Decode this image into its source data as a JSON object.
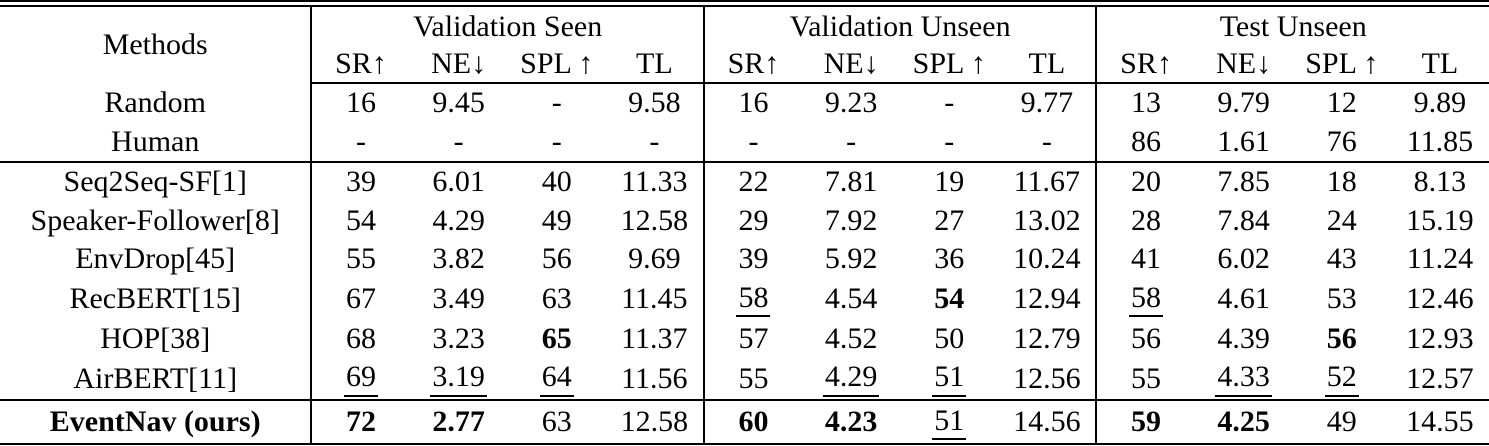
{
  "table": {
    "methods_header": "Methods",
    "groups": [
      {
        "label": "Validation Seen",
        "metrics": [
          "SR↑",
          "NE↓",
          "SPL ↑",
          "TL"
        ]
      },
      {
        "label": "Validation Unseen",
        "metrics": [
          "SR↑",
          "NE↓",
          "SPL ↑",
          "TL"
        ]
      },
      {
        "label": "Test Unseen",
        "metrics": [
          "SR↑",
          "NE↓",
          "SPL ↑",
          "TL"
        ]
      }
    ],
    "format_legend": {
      "p": "plain",
      "b": "bold",
      "u": "underline"
    },
    "rows": [
      {
        "method": "Random",
        "method_style": "p",
        "section_end": false,
        "cells": [
          {
            "t": "16",
            "s": "p"
          },
          {
            "t": "9.45",
            "s": "p"
          },
          {
            "t": "-",
            "s": "p"
          },
          {
            "t": "9.58",
            "s": "p"
          },
          {
            "t": "16",
            "s": "p"
          },
          {
            "t": "9.23",
            "s": "p"
          },
          {
            "t": "-",
            "s": "p"
          },
          {
            "t": "9.77",
            "s": "p"
          },
          {
            "t": "13",
            "s": "p"
          },
          {
            "t": "9.79",
            "s": "p"
          },
          {
            "t": "12",
            "s": "p"
          },
          {
            "t": "9.89",
            "s": "p"
          }
        ]
      },
      {
        "method": "Human",
        "method_style": "p",
        "section_end": true,
        "cells": [
          {
            "t": "-",
            "s": "p"
          },
          {
            "t": "-",
            "s": "p"
          },
          {
            "t": "-",
            "s": "p"
          },
          {
            "t": "-",
            "s": "p"
          },
          {
            "t": "-",
            "s": "p"
          },
          {
            "t": "-",
            "s": "p"
          },
          {
            "t": "-",
            "s": "p"
          },
          {
            "t": "-",
            "s": "p"
          },
          {
            "t": "86",
            "s": "p"
          },
          {
            "t": "1.61",
            "s": "p"
          },
          {
            "t": "76",
            "s": "p"
          },
          {
            "t": "11.85",
            "s": "p"
          }
        ]
      },
      {
        "method": "Seq2Seq-SF[1]",
        "method_style": "p",
        "section_end": false,
        "cells": [
          {
            "t": "39",
            "s": "p"
          },
          {
            "t": "6.01",
            "s": "p"
          },
          {
            "t": "40",
            "s": "p"
          },
          {
            "t": "11.33",
            "s": "p"
          },
          {
            "t": "22",
            "s": "p"
          },
          {
            "t": "7.81",
            "s": "p"
          },
          {
            "t": "19",
            "s": "p"
          },
          {
            "t": "11.67",
            "s": "p"
          },
          {
            "t": "20",
            "s": "p"
          },
          {
            "t": "7.85",
            "s": "p"
          },
          {
            "t": "18",
            "s": "p"
          },
          {
            "t": "8.13",
            "s": "p"
          }
        ]
      },
      {
        "method": "Speaker-Follower[8]",
        "method_style": "p",
        "section_end": false,
        "cells": [
          {
            "t": "54",
            "s": "p"
          },
          {
            "t": "4.29",
            "s": "p"
          },
          {
            "t": "49",
            "s": "p"
          },
          {
            "t": "12.58",
            "s": "p"
          },
          {
            "t": "29",
            "s": "p"
          },
          {
            "t": "7.92",
            "s": "p"
          },
          {
            "t": "27",
            "s": "p"
          },
          {
            "t": "13.02",
            "s": "p"
          },
          {
            "t": "28",
            "s": "p"
          },
          {
            "t": "7.84",
            "s": "p"
          },
          {
            "t": "24",
            "s": "p"
          },
          {
            "t": "15.19",
            "s": "p"
          }
        ]
      },
      {
        "method": "EnvDrop[45]",
        "method_style": "p",
        "section_end": false,
        "cells": [
          {
            "t": "55",
            "s": "p"
          },
          {
            "t": "3.82",
            "s": "p"
          },
          {
            "t": "56",
            "s": "p"
          },
          {
            "t": "9.69",
            "s": "p"
          },
          {
            "t": "39",
            "s": "p"
          },
          {
            "t": "5.92",
            "s": "p"
          },
          {
            "t": "36",
            "s": "p"
          },
          {
            "t": "10.24",
            "s": "p"
          },
          {
            "t": "41",
            "s": "p"
          },
          {
            "t": "6.02",
            "s": "p"
          },
          {
            "t": "43",
            "s": "p"
          },
          {
            "t": "11.24",
            "s": "p"
          }
        ]
      },
      {
        "method": "RecBERT[15]",
        "method_style": "p",
        "section_end": false,
        "cells": [
          {
            "t": "67",
            "s": "p"
          },
          {
            "t": "3.49",
            "s": "p"
          },
          {
            "t": "63",
            "s": "p"
          },
          {
            "t": "11.45",
            "s": "p"
          },
          {
            "t": "58",
            "s": "u"
          },
          {
            "t": "4.54",
            "s": "p"
          },
          {
            "t": "54",
            "s": "b"
          },
          {
            "t": "12.94",
            "s": "p"
          },
          {
            "t": "58",
            "s": "u"
          },
          {
            "t": "4.61",
            "s": "p"
          },
          {
            "t": "53",
            "s": "p"
          },
          {
            "t": "12.46",
            "s": "p"
          }
        ]
      },
      {
        "method": "HOP[38]",
        "method_style": "p",
        "section_end": false,
        "cells": [
          {
            "t": "68",
            "s": "p"
          },
          {
            "t": "3.23",
            "s": "p"
          },
          {
            "t": "65",
            "s": "b"
          },
          {
            "t": "11.37",
            "s": "p"
          },
          {
            "t": "57",
            "s": "p"
          },
          {
            "t": "4.52",
            "s": "p"
          },
          {
            "t": "50",
            "s": "p"
          },
          {
            "t": "12.79",
            "s": "p"
          },
          {
            "t": "56",
            "s": "p"
          },
          {
            "t": "4.39",
            "s": "p"
          },
          {
            "t": "56",
            "s": "b"
          },
          {
            "t": "12.93",
            "s": "p"
          }
        ]
      },
      {
        "method": "AirBERT[11]",
        "method_style": "p",
        "section_end": true,
        "cells": [
          {
            "t": "69",
            "s": "u"
          },
          {
            "t": "3.19",
            "s": "u"
          },
          {
            "t": "64",
            "s": "u"
          },
          {
            "t": "11.56",
            "s": "p"
          },
          {
            "t": "55",
            "s": "p"
          },
          {
            "t": "4.29",
            "s": "u"
          },
          {
            "t": "51",
            "s": "u"
          },
          {
            "t": "12.56",
            "s": "p"
          },
          {
            "t": "55",
            "s": "p"
          },
          {
            "t": "4.33",
            "s": "u"
          },
          {
            "t": "52",
            "s": "u"
          },
          {
            "t": "12.57",
            "s": "p"
          }
        ]
      },
      {
        "method": "EventNav (ours)",
        "method_style": "b",
        "section_end": false,
        "cells": [
          {
            "t": "72",
            "s": "b"
          },
          {
            "t": "2.77",
            "s": "b"
          },
          {
            "t": "63",
            "s": "p"
          },
          {
            "t": "12.58",
            "s": "p"
          },
          {
            "t": "60",
            "s": "b"
          },
          {
            "t": "4.23",
            "s": "b"
          },
          {
            "t": "51",
            "s": "u"
          },
          {
            "t": "14.56",
            "s": "p"
          },
          {
            "t": "59",
            "s": "b"
          },
          {
            "t": "4.25",
            "s": "b"
          },
          {
            "t": "49",
            "s": "p"
          },
          {
            "t": "14.55",
            "s": "p"
          }
        ]
      }
    ],
    "colors": {
      "text": "#000000",
      "background": "#ffffff",
      "rule": "#000000"
    }
  }
}
